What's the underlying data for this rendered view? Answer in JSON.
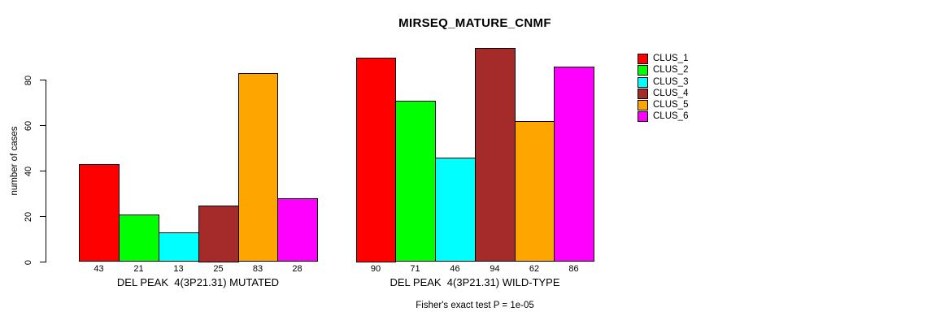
{
  "chart_data": {
    "type": "bar",
    "title": "MIRSEQ_MATURE_CNMF",
    "ylabel": "number of cases",
    "xlabel": "",
    "ylim": [
      0,
      94.6
    ],
    "yticks": [
      0,
      20,
      40,
      60,
      80
    ],
    "grid": false,
    "legend_position": "right-outside",
    "group_labels": [
      "DEL PEAK  4(3P21.31) MUTATED",
      "DEL PEAK  4(3P21.31) WILD-TYPE"
    ],
    "series": [
      {
        "name": "CLUS_1",
        "color": "#ff0000",
        "values": [
          43,
          90
        ]
      },
      {
        "name": "CLUS_2",
        "color": "#00ff00",
        "values": [
          21,
          71
        ]
      },
      {
        "name": "CLUS_3",
        "color": "#00ffff",
        "values": [
          13,
          46
        ]
      },
      {
        "name": "CLUS_4",
        "color": "#a52a2a",
        "values": [
          25,
          94
        ]
      },
      {
        "name": "CLUS_5",
        "color": "#ffa500",
        "values": [
          83,
          62
        ]
      },
      {
        "name": "CLUS_6",
        "color": "#ff00ff",
        "values": [
          28,
          86
        ]
      }
    ],
    "annotation": "Fisher's exact test P = 1e-05"
  }
}
